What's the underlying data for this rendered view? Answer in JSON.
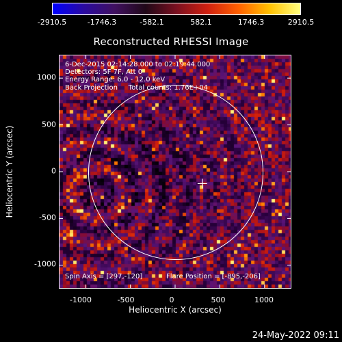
{
  "colorbar": {
    "labels": [
      "-2910.5",
      "-1746.3",
      "-582.1",
      "582.1",
      "1746.3",
      "2910.5"
    ],
    "colors": [
      "#0000ff",
      "#2a0aa0",
      "#401060",
      "#200818",
      "#7a1020",
      "#d02010",
      "#ff6000",
      "#ffc000",
      "#ffff80"
    ]
  },
  "title": "Reconstructed RHESSI Image",
  "info": {
    "line1": "6-Dec-2015 02:14:28.000 to 02:19:44.000",
    "line2": "Detectors: 5F 7F, Att 0",
    "line3": "Energy Range: 6.0 - 12.0 keV",
    "line4": "Back Projection     Total counts: 1.76E+04",
    "spin_axis": "Spin Axis = [297,-120]",
    "flare_position": "Flare Position = [-895,-206]"
  },
  "axes": {
    "xlabel": "Heliocentric X (arcsec)",
    "ylabel": "Heliocentric Y (arcsec)",
    "xticks": [
      "-1000",
      "-500",
      "0",
      "500",
      "1000"
    ],
    "yticks": [
      "1000",
      "500",
      "0",
      "-500",
      "-1000"
    ],
    "xlim": [
      -1300,
      1300
    ],
    "ylim": [
      -1250,
      1250
    ]
  },
  "markers": {
    "solar_limb_radius_arcsec": 975,
    "cross_position": [
      297,
      -120
    ]
  },
  "footer": {
    "date": "24-May-2022 09:11"
  }
}
